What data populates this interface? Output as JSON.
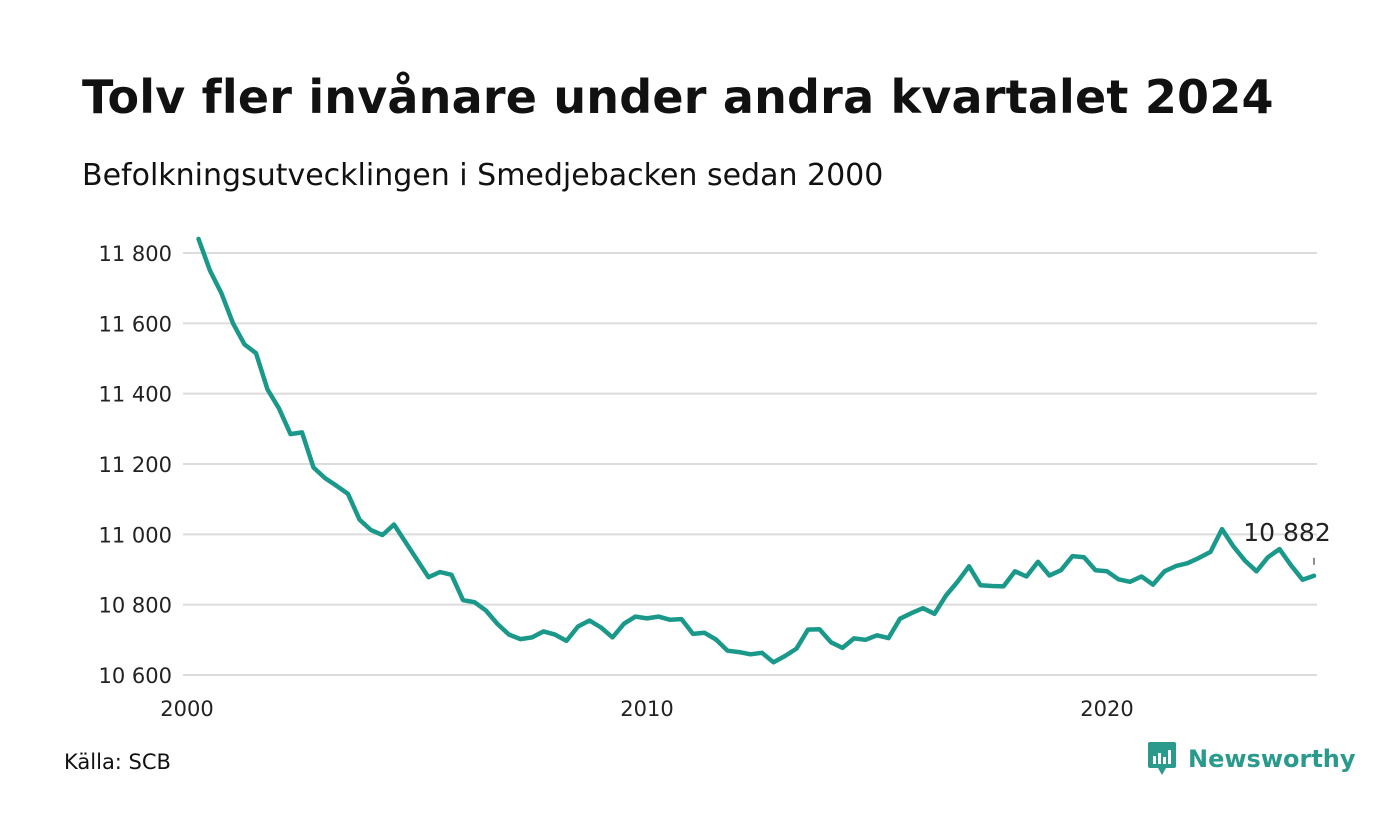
{
  "title": "Tolv fler invånare under andra kvartalet 2024",
  "subtitle": "Befolkningsutvecklingen i Smedjebacken sedan 2000",
  "source": "Källa: SCB",
  "brand": {
    "name": "Newsworthy",
    "icon": "newsworthy-logo-icon"
  },
  "colors": {
    "line": "#1a998a",
    "grid": "#dcdcdc",
    "text": "#222222"
  },
  "chart_data": {
    "type": "line",
    "title": "Tolv fler invånare under andra kvartalet 2024",
    "subtitle": "Befolkningsutvecklingen i Smedjebacken sedan 2000",
    "xlabel": "",
    "ylabel": "",
    "xlim": [
      2000,
      2025
    ],
    "ylim": [
      10600,
      11840
    ],
    "x_ticks": [
      2000,
      2010,
      2020
    ],
    "x_tick_labels": [
      "2000",
      "2010",
      "2020"
    ],
    "y_ticks": [
      10600,
      10800,
      11000,
      11200,
      11400,
      11600,
      11800
    ],
    "y_tick_labels": [
      "10 600",
      "10 800",
      "11 000",
      "11 200",
      "11 400",
      "11 600",
      "11 800"
    ],
    "grid": true,
    "end_label": "10 882",
    "series": [
      {
        "x_start": 2000.25,
        "step": 0.25,
        "values": [
          11840,
          11750,
          11685,
          11600,
          11540,
          11515,
          11412,
          11358,
          11285,
          11290,
          11190,
          11160,
          11138,
          11115,
          11042,
          11012,
          10998,
          11028,
          10978,
          10928,
          10878,
          10893,
          10885,
          10813,
          10807,
          10783,
          10745,
          10715,
          10702,
          10707,
          10724,
          10715,
          10697,
          10738,
          10755,
          10735,
          10707,
          10746,
          10766,
          10761,
          10766,
          10757,
          10759,
          10717,
          10720,
          10701,
          10669,
          10665,
          10659,
          10663,
          10636,
          10654,
          10675,
          10729,
          10730,
          10693,
          10677,
          10704,
          10700,
          10713,
          10705,
          10760,
          10776,
          10790,
          10774,
          10826,
          10865,
          10909,
          10855,
          10853,
          10852,
          10895,
          10880,
          10922,
          10883,
          10898,
          10938,
          10935,
          10898,
          10895,
          10872,
          10865,
          10880,
          10857,
          10895,
          10910,
          10918,
          10933,
          10950,
          11015,
          10965,
          10925,
          10895,
          10935,
          10958,
          10912,
          10871,
          10882
        ]
      }
    ]
  }
}
